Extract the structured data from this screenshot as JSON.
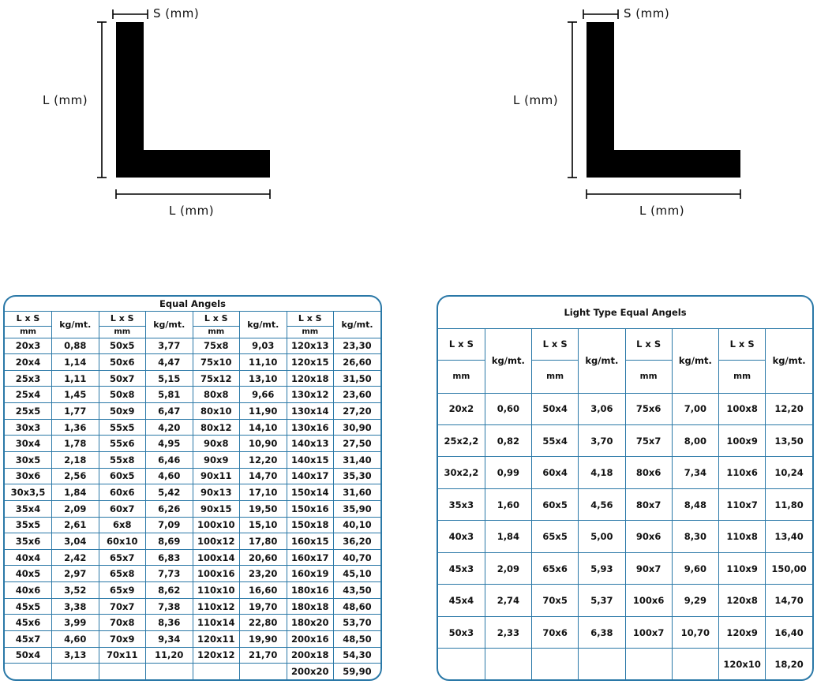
{
  "diagrams": [
    {
      "thickness_label": "S (mm)",
      "height_label": "L (mm)",
      "width_label": "L (mm)"
    },
    {
      "thickness_label": "S (mm)",
      "height_label": "L (mm)",
      "width_label": "L (mm)"
    }
  ],
  "equal_table": {
    "title": "Equal Angels",
    "col_header": "L x S",
    "unit_header": "kg/mt.",
    "mm_label": "mm",
    "rows": [
      [
        "20x3",
        "0,88",
        "50x5",
        "3,77",
        "75x8",
        "9,03",
        "120x13",
        "23,30"
      ],
      [
        "20x4",
        "1,14",
        "50x6",
        "4,47",
        "75x10",
        "11,10",
        "120x15",
        "26,60"
      ],
      [
        "25x3",
        "1,11",
        "50x7",
        "5,15",
        "75x12",
        "13,10",
        "120x18",
        "31,50"
      ],
      [
        "25x4",
        "1,45",
        "50x8",
        "5,81",
        "80x8",
        "9,66",
        "130x12",
        "23,60"
      ],
      [
        "25x5",
        "1,77",
        "50x9",
        "6,47",
        "80x10",
        "11,90",
        "130x14",
        "27,20"
      ],
      [
        "30x3",
        "1,36",
        "55x5",
        "4,20",
        "80x12",
        "14,10",
        "130x16",
        "30,90"
      ],
      [
        "30x4",
        "1,78",
        "55x6",
        "4,95",
        "90x8",
        "10,90",
        "140x13",
        "27,50"
      ],
      [
        "30x5",
        "2,18",
        "55x8",
        "6,46",
        "90x9",
        "12,20",
        "140x15",
        "31,40"
      ],
      [
        "30x6",
        "2,56",
        "60x5",
        "4,60",
        "90x11",
        "14,70",
        "140x17",
        "35,30"
      ],
      [
        "30x3,5",
        "1,84",
        "60x6",
        "5,42",
        "90x13",
        "17,10",
        "150x14",
        "31,60"
      ],
      [
        "35x4",
        "2,09",
        "60x7",
        "6,26",
        "90x15",
        "19,50",
        "150x16",
        "35,90"
      ],
      [
        "35x5",
        "2,61",
        "6x8",
        "7,09",
        "100x10",
        "15,10",
        "150x18",
        "40,10"
      ],
      [
        "35x6",
        "3,04",
        "60x10",
        "8,69",
        "100x12",
        "17,80",
        "160x15",
        "36,20"
      ],
      [
        "40x4",
        "2,42",
        "65x7",
        "6,83",
        "100x14",
        "20,60",
        "160x17",
        "40,70"
      ],
      [
        "40x5",
        "2,97",
        "65x8",
        "7,73",
        "100x16",
        "23,20",
        "160x19",
        "45,10"
      ],
      [
        "40x6",
        "3,52",
        "65x9",
        "8,62",
        "110x10",
        "16,60",
        "180x16",
        "43,50"
      ],
      [
        "45x5",
        "3,38",
        "70x7",
        "7,38",
        "110x12",
        "19,70",
        "180x18",
        "48,60"
      ],
      [
        "45x6",
        "3,99",
        "70x8",
        "8,36",
        "110x14",
        "22,80",
        "180x20",
        "53,70"
      ],
      [
        "45x7",
        "4,60",
        "70x9",
        "9,34",
        "120x11",
        "19,90",
        "200x16",
        "48,50"
      ],
      [
        "50x4",
        "3,13",
        "70x11",
        "11,20",
        "120x12",
        "21,70",
        "200x18",
        "54,30"
      ],
      [
        "",
        "",
        "",
        "",
        "",
        "",
        "200x20",
        "59,90"
      ]
    ]
  },
  "light_table": {
    "title": "Light Type Equal Angels",
    "col_header": "L x S",
    "unit_header": "kg/mt.",
    "mm_label": "mm",
    "rows": [
      [
        "20x2",
        "0,60",
        "50x4",
        "3,06",
        "75x6",
        "7,00",
        "100x8",
        "12,20"
      ],
      [
        "25x2,2",
        "0,82",
        "55x4",
        "3,70",
        "75x7",
        "8,00",
        "100x9",
        "13,50"
      ],
      [
        "30x2,2",
        "0,99",
        "60x4",
        "4,18",
        "80x6",
        "7,34",
        "110x6",
        "10,24"
      ],
      [
        "35x3",
        "1,60",
        "60x5",
        "4,56",
        "80x7",
        "8,48",
        "110x7",
        "11,80"
      ],
      [
        "40x3",
        "1,84",
        "65x5",
        "5,00",
        "90x6",
        "8,30",
        "110x8",
        "13,40"
      ],
      [
        "45x3",
        "2,09",
        "65x6",
        "5,93",
        "90x7",
        "9,60",
        "110x9",
        "150,00"
      ],
      [
        "45x4",
        "2,74",
        "70x5",
        "5,37",
        "100x6",
        "9,29",
        "120x8",
        "14,70"
      ],
      [
        "50x3",
        "2,33",
        "70x6",
        "6,38",
        "100x7",
        "10,70",
        "120x9",
        "16,40"
      ],
      [
        "",
        "",
        "",
        "",
        "",
        "",
        "120x10",
        "18,20"
      ]
    ]
  }
}
